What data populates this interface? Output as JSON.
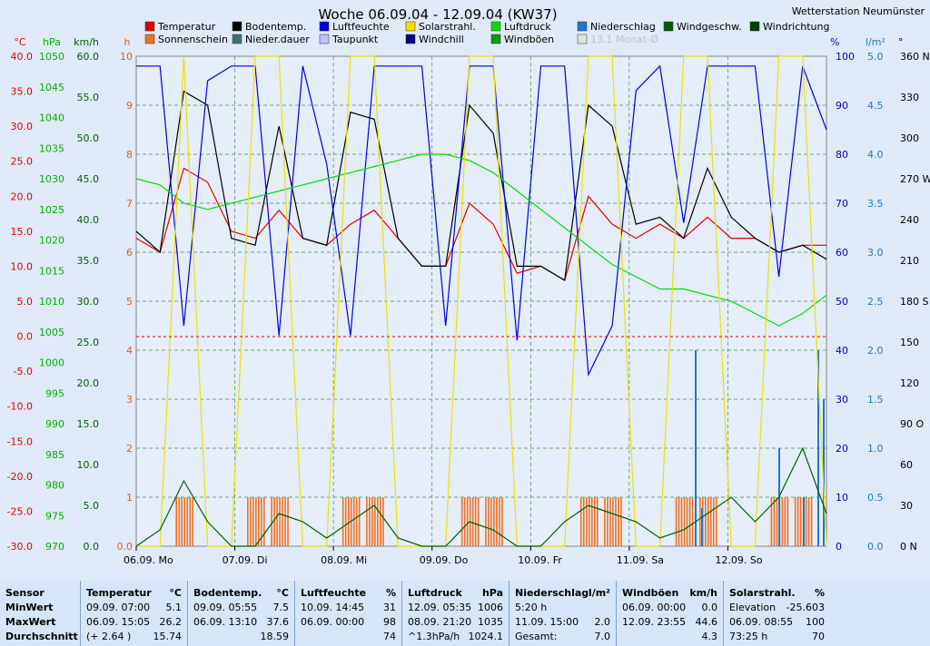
{
  "header": {
    "title": "Woche 06.09.04 - 12.09.04 (KW37)",
    "station": "Wetterstation Neumünster"
  },
  "chart_data": {
    "type": "line",
    "title": "Woche 06.09.04 - 12.09.04 (KW37)",
    "x_labels": [
      "06.09.  Mo",
      "07.09.  Di",
      "08.09.  Mi",
      "09.09.  Do",
      "10.09.  Fr",
      "11.09.  Sa",
      "12.09.  So"
    ],
    "left_axes": [
      {
        "unit": "°C",
        "color": "#e00000",
        "ticks": [
          "40.0",
          "35.0",
          "30.0",
          "25.0",
          "20.0",
          "15.0",
          "10.0",
          "5.0",
          "0.0",
          "-5.0",
          "-10.0",
          "-15.0",
          "-20.0",
          "-25.0",
          "-30.0"
        ]
      },
      {
        "unit": "hPa",
        "color": "#00b000",
        "ticks": [
          "1050",
          "1045",
          "1040",
          "1035",
          "1030",
          "1025",
          "1020",
          "1015",
          "1010",
          "1005",
          "1000",
          "995",
          "990",
          "985",
          "980",
          "975",
          "970"
        ]
      },
      {
        "unit": "km/h",
        "color": "#006000",
        "ticks": [
          "60.0",
          "55.0",
          "50.0",
          "45.0",
          "40.0",
          "35.0",
          "30.0",
          "25.0",
          "20.0",
          "15.0",
          "10.0",
          "5.0",
          "0.0"
        ]
      },
      {
        "unit": "h",
        "color": "#e06020",
        "ticks": [
          "10",
          "9",
          "8",
          "7",
          "6",
          "5",
          "4",
          "3",
          "2",
          "1",
          "0.0"
        ]
      }
    ],
    "right_axes": [
      {
        "unit": "%",
        "color": "#0000c0",
        "ticks": [
          "100",
          "90",
          "80",
          "70",
          "60",
          "50",
          "40",
          "30",
          "20",
          "10",
          "0"
        ]
      },
      {
        "unit": "l/m²",
        "color": "#1e78c8",
        "ticks": [
          "5.0",
          "4.5",
          "4.0",
          "3.5",
          "3.0",
          "2.5",
          "2.0",
          "1.5",
          "1.0",
          "0.5",
          "0.0"
        ]
      },
      {
        "unit": "°",
        "color": "#000000",
        "ticks": [
          "360 N",
          "330",
          "300",
          "270 W",
          "240",
          "210",
          "180 S",
          "150",
          "120",
          "90 O",
          "60",
          "30",
          "0   N"
        ]
      }
    ],
    "legend": [
      {
        "name": "Temperatur",
        "color": "#e00000"
      },
      {
        "name": "Bodentemp.",
        "color": "#000000"
      },
      {
        "name": "Luftfeuchte",
        "color": "#0000e0"
      },
      {
        "name": "Solarstrahl.",
        "color": "#f0e000"
      },
      {
        "name": "Luftdruck",
        "color": "#00e000"
      },
      {
        "name": "Niederschlag",
        "color": "#1e78c8"
      },
      {
        "name": "Windgeschw.",
        "color": "#006000"
      },
      {
        "name": "Windrichtung",
        "color": "#004000"
      },
      {
        "name": "Sonnenschein",
        "color": "#f07020"
      },
      {
        "name": "Nieder.dauer",
        "color": "#407070"
      },
      {
        "name": "Taupunkt",
        "color": "#c0c0ff"
      },
      {
        "name": "Windchill",
        "color": "#000080"
      },
      {
        "name": "Windböen",
        "color": "#00a000"
      },
      {
        "name": "13.1 Monat-Ø",
        "color": "#e0e0e0"
      }
    ],
    "series": [
      {
        "name": "Temperatur",
        "color": "#e00000",
        "values": [
          14,
          12,
          24,
          22,
          15,
          14,
          18,
          14,
          13,
          16,
          18,
          14,
          10,
          10,
          19,
          16,
          9,
          10,
          8,
          20,
          16,
          14,
          16,
          14,
          17,
          14,
          14,
          12,
          13,
          13
        ]
      },
      {
        "name": "Bodentemp.",
        "color": "#000000",
        "values": [
          15,
          12,
          35,
          33,
          14,
          13,
          30,
          14,
          13,
          32,
          31,
          14,
          10,
          10,
          33,
          29,
          10,
          10,
          8,
          33,
          30,
          16,
          17,
          14,
          24,
          17,
          14,
          12,
          13,
          11
        ]
      },
      {
        "name": "Luftfeuchte",
        "color": "#0000e0",
        "values": [
          98,
          98,
          45,
          95,
          98,
          98,
          43,
          98,
          78,
          43,
          98,
          98,
          98,
          45,
          98,
          98,
          42,
          98,
          98,
          35,
          45,
          93,
          98,
          66,
          98,
          98,
          98,
          55,
          98,
          85
        ]
      },
      {
        "name": "Luftdruck",
        "color": "#00e000",
        "values": [
          1030,
          1029,
          1026,
          1025,
          1026,
          1027,
          1028,
          1029,
          1030,
          1031,
          1032,
          1033,
          1034,
          1034,
          1033,
          1031,
          1028,
          1025,
          1022,
          1019,
          1016,
          1014,
          1012,
          1012,
          1011,
          1010,
          1008,
          1006,
          1008,
          1011
        ]
      },
      {
        "name": "Solarstrahl.",
        "color": "#f0e000",
        "values": [
          0,
          0,
          100,
          0,
          0,
          100,
          100,
          0,
          0,
          100,
          100,
          0,
          0,
          0,
          100,
          100,
          0,
          0,
          0,
          100,
          100,
          0,
          0,
          100,
          100,
          0,
          0,
          100,
          100,
          0
        ]
      },
      {
        "name": "Windgeschw.",
        "color": "#006000",
        "values": [
          0,
          2,
          8,
          3,
          0,
          0,
          4,
          3,
          1,
          3,
          5,
          1,
          0,
          0,
          3,
          2,
          0,
          0,
          3,
          5,
          4,
          3,
          1,
          2,
          4,
          6,
          3,
          6,
          12,
          4
        ]
      }
    ]
  },
  "stats": {
    "sensor": {
      "title": "Sensor",
      "rows": [
        "MinWert",
        "MaxWert",
        "Durchschnitt"
      ]
    },
    "temperatur": {
      "title": "Temperatur",
      "unit": "°C",
      "rows": [
        [
          "09.09.  07:00",
          "5.1"
        ],
        [
          "06.09.  15:05",
          "26.2"
        ],
        [
          "(+ 2.64 )",
          "15.74"
        ]
      ]
    },
    "bodentemp": {
      "title": "Bodentemp.",
      "unit": "°C",
      "rows": [
        [
          "09.09.  05:55",
          "7.5"
        ],
        [
          "06.09.  13:10",
          "37.6"
        ],
        [
          "",
          "18.59"
        ]
      ]
    },
    "luftfeuchte": {
      "title": "Luftfeuchte",
      "unit": "%",
      "rows": [
        [
          "10.09.  14:45",
          "31"
        ],
        [
          "06.09.  00:00",
          "98"
        ],
        [
          "",
          "74"
        ]
      ]
    },
    "luftdruck": {
      "title": "Luftdruck",
      "unit": "hPa",
      "rows": [
        [
          "12.09.  05:35",
          "1006"
        ],
        [
          "08.09.  21:20",
          "1035"
        ],
        [
          "^1.3hPa/h",
          "1024.1"
        ]
      ]
    },
    "niederschlag": {
      "title": "Niederschlag",
      "unit": "l/m²",
      "rows": [
        [
          "5:20 h",
          ""
        ],
        [
          "11.09.  15:00",
          "2.0"
        ],
        [
          "Gesamt:",
          "7.0"
        ]
      ]
    },
    "windboeen": {
      "title": "Windböen",
      "unit": "km/h",
      "rows": [
        [
          "06.09.  00:00",
          "0.0"
        ],
        [
          "12.09.  23:55",
          "44.6"
        ],
        [
          "",
          "4.3"
        ]
      ]
    },
    "solarstrahl": {
      "title": "Solarstrahl.",
      "unit": "%",
      "rows": [
        [
          "Elevation",
          "-25.603"
        ],
        [
          "06.09.  08:55",
          "100"
        ],
        [
          "73:25 h",
          "70"
        ]
      ]
    }
  }
}
